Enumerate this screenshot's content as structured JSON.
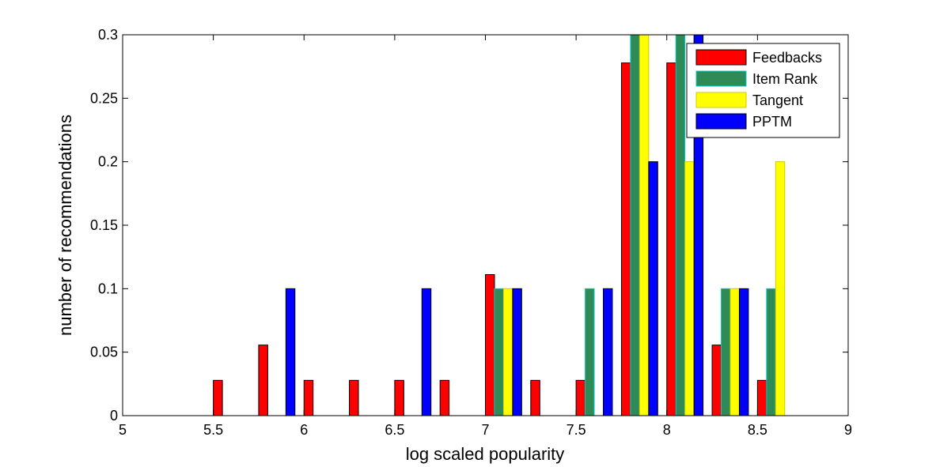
{
  "chart_data": {
    "type": "bar",
    "xlabel": "log scaled popularity",
    "ylabel": "number of recommendations",
    "xlim": [
      5,
      9
    ],
    "ylim": [
      0,
      0.3
    ],
    "xticks": [
      "5",
      "5.5",
      "6",
      "6.5",
      "7",
      "7.5",
      "8",
      "8.5",
      "9"
    ],
    "yticks": [
      "0",
      "0.05",
      "0.1",
      "0.15",
      "0.2",
      "0.25",
      "0.3"
    ],
    "bin_centers": [
      5.1,
      5.35,
      5.6,
      5.85,
      6.1,
      6.35,
      6.6,
      6.85,
      7.1,
      7.35,
      7.6,
      7.85,
      8.1,
      8.35,
      8.6,
      8.85
    ],
    "legend_position": "top-right",
    "series": [
      {
        "name": "Feedbacks",
        "color": "#ff0000",
        "edge": "#000000",
        "values": [
          0,
          0,
          0.0278,
          0.0556,
          0.0278,
          0.0278,
          0.0278,
          0.0278,
          0.1111,
          0.0278,
          0.0278,
          0.2778,
          0.2778,
          0.0556,
          0.0278,
          0
        ]
      },
      {
        "name": "Item Rank",
        "color": "#2e8b57",
        "edge": "#00cccc",
        "values": [
          0,
          0,
          0,
          0,
          0,
          0,
          0,
          0,
          0.1,
          0,
          0.1,
          0.3,
          0.3,
          0.1,
          0.1,
          0
        ]
      },
      {
        "name": "Tangent",
        "color": "#ffff00",
        "edge": "#cccc00",
        "values": [
          0,
          0,
          0,
          0,
          0,
          0,
          0,
          0,
          0.1,
          0,
          0,
          0.3,
          0.2,
          0.1,
          0.2,
          0
        ]
      },
      {
        "name": "PPTM",
        "color": "#0000ff",
        "edge": "#000000",
        "values": [
          0,
          0,
          0,
          0.1,
          0,
          0,
          0.1,
          0,
          0.1,
          0,
          0.1,
          0.2,
          0.3,
          0.1,
          0,
          0
        ]
      }
    ]
  }
}
